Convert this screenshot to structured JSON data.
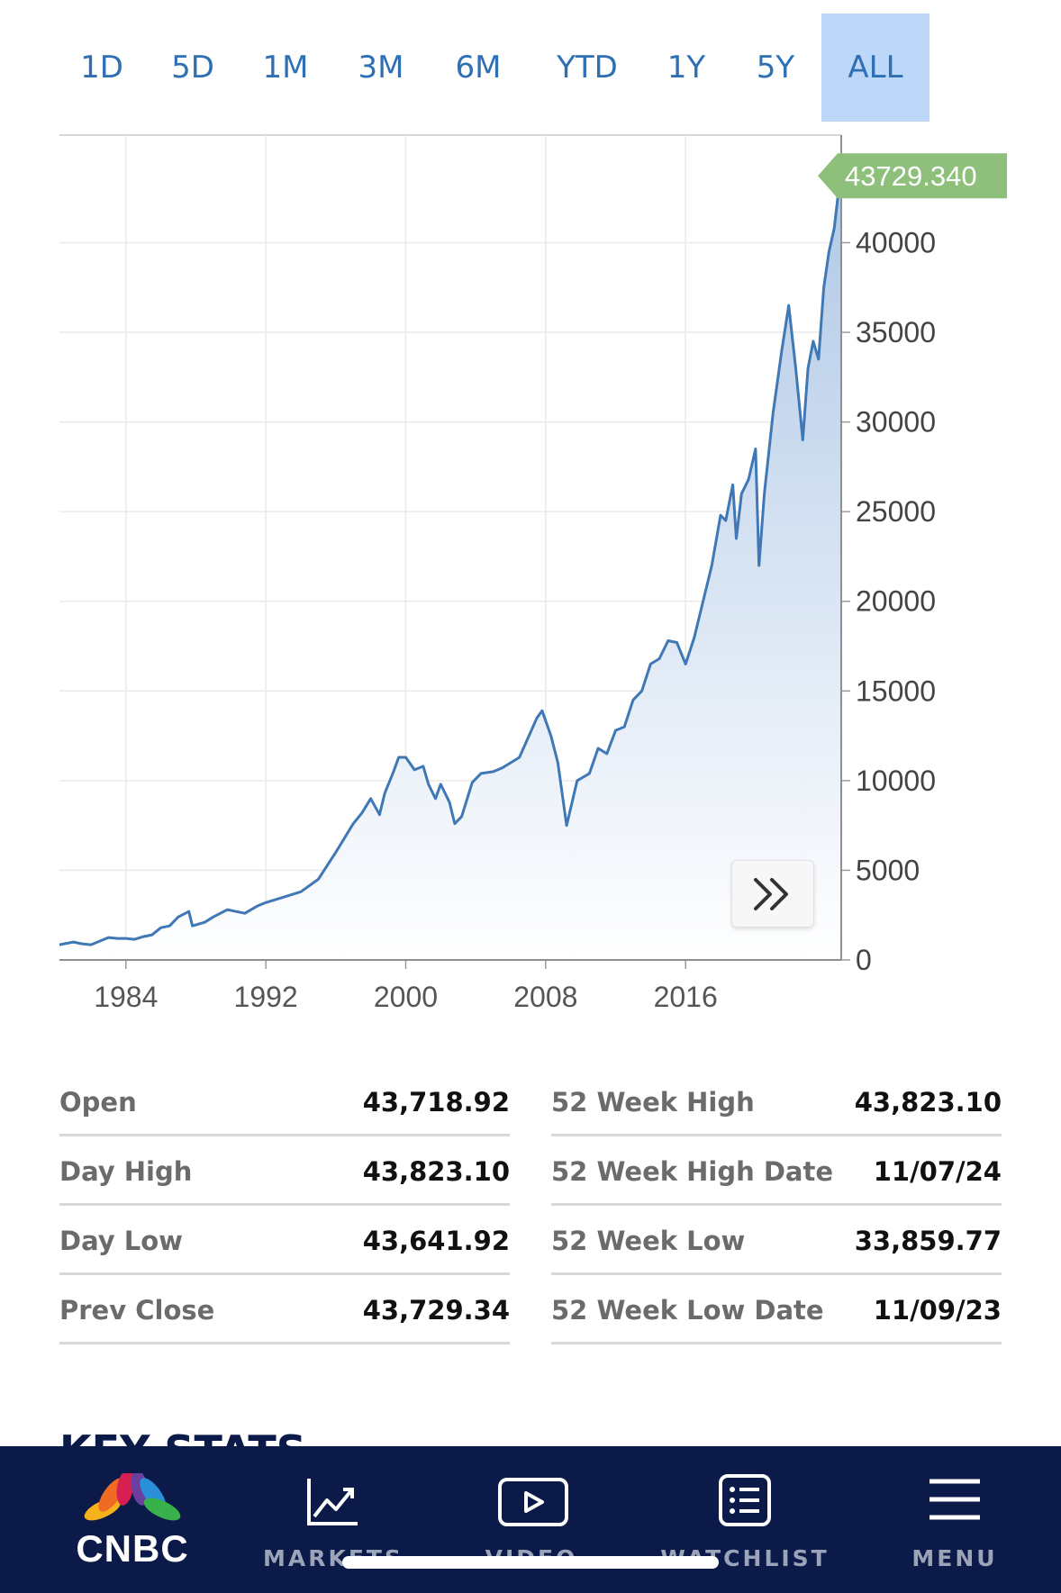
{
  "range_tabs": {
    "items": [
      "1D",
      "5D",
      "1M",
      "3M",
      "6M",
      "YTD",
      "1Y",
      "5Y",
      "ALL"
    ],
    "active": "ALL"
  },
  "chart_data": {
    "type": "area",
    "x_label_ticks": [
      "1984",
      "1992",
      "2000",
      "2008",
      "2016"
    ],
    "y_ticks": [
      0,
      5000,
      10000,
      15000,
      20000,
      25000,
      30000,
      35000,
      40000
    ],
    "ylim": [
      0,
      46000
    ],
    "xlim": [
      1980.2,
      2024.9
    ],
    "last_value_label": "43729.340",
    "grid": true,
    "colors": {
      "line": "#3f78b5",
      "fill_top": "#b0c8e6",
      "fill_bottom": "#ffffff",
      "last_tag": "#8ec07c"
    },
    "series": [
      {
        "x": [
          1980.2,
          1981.0,
          1981.5,
          1982.0,
          1982.5,
          1983.0,
          1983.5,
          1984.0,
          1984.5,
          1985.0,
          1985.5,
          1986.0,
          1986.5,
          1987.0,
          1987.6,
          1987.8,
          1988.5,
          1989.0,
          1989.8,
          1990.3,
          1990.8,
          1991.5,
          1992.0,
          1993.0,
          1994.0,
          1995.0,
          1996.0,
          1997.0,
          1997.5,
          1998.0,
          1998.5,
          1998.8,
          1999.3,
          1999.6,
          2000.0,
          2000.5,
          2001.0,
          2001.3,
          2001.7,
          2002.0,
          2002.5,
          2002.8,
          2003.2,
          2003.8,
          2004.3,
          2005.0,
          2005.5,
          2006.0,
          2006.5,
          2007.0,
          2007.5,
          2007.8,
          2008.3,
          2008.7,
          2009.2,
          2009.8,
          2010.5,
          2011.0,
          2011.5,
          2012.0,
          2012.5,
          2013.0,
          2013.5,
          2014.0,
          2014.5,
          2015.0,
          2015.5,
          2016.0,
          2016.5,
          2017.0,
          2017.5,
          2018.0,
          2018.3,
          2018.7,
          2018.9,
          2019.2,
          2019.6,
          2020.0,
          2020.2,
          2020.5,
          2021.0,
          2021.5,
          2021.9,
          2022.3,
          2022.7,
          2023.0,
          2023.3,
          2023.6,
          2023.9,
          2024.2,
          2024.5,
          2024.85
        ],
        "values": [
          850,
          1000,
          900,
          850,
          1050,
          1250,
          1200,
          1200,
          1150,
          1300,
          1400,
          1800,
          1900,
          2400,
          2700,
          1900,
          2100,
          2400,
          2800,
          2700,
          2600,
          3000,
          3200,
          3500,
          3800,
          4500,
          6000,
          7600,
          8200,
          9000,
          8100,
          9300,
          10500,
          11300,
          11300,
          10600,
          10800,
          9800,
          9000,
          9800,
          8800,
          7600,
          8000,
          9900,
          10400,
          10500,
          10700,
          11000,
          11300,
          12400,
          13500,
          13900,
          12500,
          11000,
          7500,
          10000,
          10400,
          11800,
          11500,
          12800,
          13000,
          14500,
          15000,
          16500,
          16800,
          17800,
          17700,
          16500,
          18000,
          20000,
          22000,
          24800,
          24500,
          26500,
          23500,
          26000,
          26800,
          28500,
          22000,
          26000,
          30500,
          34000,
          36500,
          33000,
          29000,
          33000,
          34500,
          33500,
          37500,
          39500,
          40800,
          43729
        ]
      }
    ]
  },
  "stats": {
    "left": [
      {
        "label": "Open",
        "value": "43,718.92"
      },
      {
        "label": "Day High",
        "value": "43,823.10"
      },
      {
        "label": "Day Low",
        "value": "43,641.92"
      },
      {
        "label": "Prev Close",
        "value": "43,729.34"
      }
    ],
    "right": [
      {
        "label": "52 Week High",
        "value": "43,823.10"
      },
      {
        "label": "52 Week High Date",
        "value": "11/07/24"
      },
      {
        "label": "52 Week Low",
        "value": "33,859.77"
      },
      {
        "label": "52 Week Low Date",
        "value": "11/09/23"
      }
    ]
  },
  "section_peek": "KEY STATS",
  "bottom_nav": {
    "logo": "CNBC",
    "items": [
      "MARKETS",
      "VIDEO",
      "WATCHLIST",
      "MENU"
    ]
  }
}
